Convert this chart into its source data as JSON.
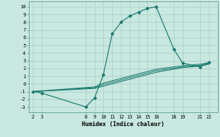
{
  "xlabel": "Humidex (Indice chaleur)",
  "bg_color": "#c8e8e0",
  "grid_color": "#a8ccc4",
  "line_color": "#1a7a6e",
  "xlim": [
    1.5,
    23.0
  ],
  "ylim": [
    -3.7,
    10.7
  ],
  "xticks": [
    2,
    3,
    8,
    9,
    10,
    11,
    12,
    13,
    14,
    15,
    16,
    18,
    19,
    21,
    22
  ],
  "yticks": [
    -3,
    -2,
    -1,
    0,
    1,
    2,
    3,
    4,
    5,
    6,
    7,
    8,
    9,
    10
  ],
  "lines": [
    {
      "x": [
        2,
        3,
        8,
        9,
        10,
        11,
        12,
        13,
        14,
        15,
        16,
        18,
        19,
        21,
        22
      ],
      "y": [
        -1.0,
        -1.2,
        -3.0,
        -1.8,
        1.2,
        6.5,
        8.0,
        8.8,
        9.3,
        9.8,
        10.0,
        4.5,
        2.7,
        2.2,
        2.8
      ],
      "marker": "D",
      "markersize": 2.0,
      "linewidth": 0.9
    },
    {
      "x": [
        2,
        9,
        10,
        16,
        19,
        21,
        22
      ],
      "y": [
        -1.0,
        -0.6,
        -0.3,
        1.5,
        2.1,
        2.3,
        2.55
      ],
      "marker": null,
      "linewidth": 0.8
    },
    {
      "x": [
        2,
        9,
        10,
        16,
        19,
        21,
        22
      ],
      "y": [
        -1.0,
        -0.5,
        -0.1,
        1.7,
        2.2,
        2.4,
        2.65
      ],
      "marker": null,
      "linewidth": 0.8
    },
    {
      "x": [
        2,
        9,
        10,
        16,
        19,
        21,
        22
      ],
      "y": [
        -1.0,
        -0.4,
        0.1,
        1.9,
        2.35,
        2.55,
        2.75
      ],
      "marker": null,
      "linewidth": 0.8
    }
  ]
}
